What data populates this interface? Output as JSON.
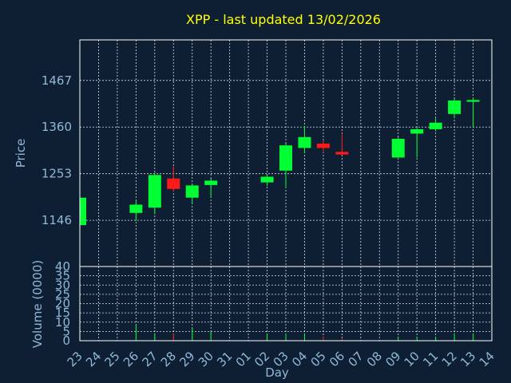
{
  "chart_data": {
    "title": "XPP - last updated 13/02/2026",
    "type": "candlestick",
    "xlabel": "Day",
    "grid": true,
    "colors": {
      "background": "#0f1f33",
      "up": "#00ff33",
      "down": "#ff1a1a",
      "title": "#ffff00",
      "axis_text": "#8fb8d8",
      "grid": "#ffffff"
    },
    "price_panel": {
      "ylabel": "Price",
      "ylim": [
        1040,
        1560
      ],
      "yticks": [
        1146,
        1253,
        1360,
        1467
      ]
    },
    "volume_panel": {
      "ylabel": "Volume (0000)",
      "ylim": [
        0,
        40
      ],
      "yticks": [
        0,
        5,
        10,
        15,
        20,
        25,
        30,
        35,
        40
      ],
      "yticklabels": [
        "0",
        "5",
        "10",
        "15",
        "20",
        "25",
        "30",
        "35",
        "40"
      ]
    },
    "days": [
      "23",
      "24",
      "25",
      "26",
      "27",
      "28",
      "29",
      "30",
      "31",
      "01",
      "02",
      "03",
      "04",
      "05",
      "06",
      "07",
      "08",
      "09",
      "10",
      "11",
      "12",
      "13",
      "14"
    ],
    "candles": [
      {
        "day": "23",
        "open": 1135,
        "high": 1198,
        "low": 1135,
        "close": 1198,
        "volume": 0
      },
      {
        "day": "26",
        "open": 1163,
        "high": 1190,
        "low": 1145,
        "close": 1182,
        "volume": 9
      },
      {
        "day": "27",
        "open": 1175,
        "high": 1255,
        "low": 1160,
        "close": 1250,
        "volume": 4
      },
      {
        "day": "28",
        "open": 1242,
        "high": 1270,
        "low": 1212,
        "close": 1218,
        "volume": 4
      },
      {
        "day": "29",
        "open": 1198,
        "high": 1228,
        "low": 1185,
        "close": 1226,
        "volume": 7
      },
      {
        "day": "30",
        "open": 1227,
        "high": 1242,
        "low": 1198,
        "close": 1237,
        "volume": 5
      },
      {
        "day": "02",
        "open": 1233,
        "high": 1250,
        "low": 1225,
        "close": 1246,
        "volume": 4
      },
      {
        "day": "03",
        "open": 1260,
        "high": 1322,
        "low": 1220,
        "close": 1318,
        "volume": 4
      },
      {
        "day": "04",
        "open": 1312,
        "high": 1363,
        "low": 1300,
        "close": 1337,
        "volume": 4
      },
      {
        "day": "05",
        "open": 1322,
        "high": 1330,
        "low": 1302,
        "close": 1312,
        "volume": 2
      },
      {
        "day": "06",
        "open": 1303,
        "high": 1345,
        "low": 1296,
        "close": 1297,
        "volume": 1
      },
      {
        "day": "09",
        "open": 1290,
        "high": 1337,
        "low": 1290,
        "close": 1333,
        "volume": 2
      },
      {
        "day": "10",
        "open": 1345,
        "high": 1358,
        "low": 1290,
        "close": 1355,
        "volume": 2
      },
      {
        "day": "11",
        "open": 1355,
        "high": 1380,
        "low": 1350,
        "close": 1370,
        "volume": 2
      },
      {
        "day": "12",
        "open": 1390,
        "high": 1425,
        "low": 1380,
        "close": 1421,
        "volume": 4
      },
      {
        "day": "13",
        "open": 1418,
        "high": 1428,
        "low": 1358,
        "close": 1422,
        "volume": 4
      }
    ]
  }
}
